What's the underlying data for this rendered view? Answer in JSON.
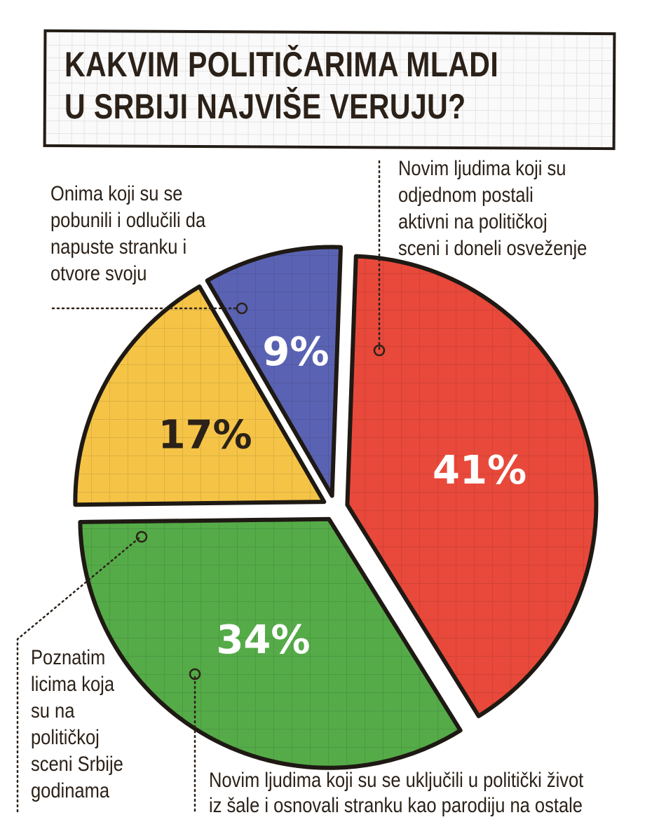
{
  "chart_data": {
    "type": "pie",
    "title": "KAKVIM POLITIČARIMA MLADI U SRBIJI NAJVIŠE VERUJU?",
    "title_lines": [
      "KAKVIM POLITIČARIMA MLADI",
      "U SRBIJI NAJVIŠE VERUJU?"
    ],
    "slices": [
      {
        "label": "Novim ljudima koji su odjednom postali aktivni na političkoj sceni i doneli osveženje",
        "value": 41,
        "value_label": "41%",
        "color": "#e8493b",
        "text_color": "#ffffff"
      },
      {
        "label": "Novim ljudima koji su se uključili u politički život iz šale i osnovali stranku kao parodiju na ostale",
        "value": 34,
        "value_label": "34%",
        "color": "#55ab48",
        "text_color": "#ffffff"
      },
      {
        "label": "Poznatim licima koja su na političkoj sceni Srbije godinama",
        "value": 17,
        "value_label": "17%",
        "color": "#f5c447",
        "text_color": "#2b2118"
      },
      {
        "label": "Onima koji su se pobunili i odlučili da napuste stranku i otvore svoju",
        "value": 9,
        "value_label": "9%",
        "color": "#5a63b3",
        "text_color": "#ffffff"
      }
    ]
  },
  "annotations": {
    "red": "Novim ljudima koji su\nodjednom postali\naktivni na političkoj\nsceni i doneli osveženje",
    "blue": "Onima koji su se\npobunili i odlučili da\nnapuste stranku i\notvore svoju",
    "yellow": "Poznatim\nlicima koja\nsu na\npolitičkoj\nsceni Srbije\ngodinama",
    "green": "Novim ljudima koji su se uključili u politički život\niz šale i osnovali stranku kao parodiju na ostale"
  }
}
